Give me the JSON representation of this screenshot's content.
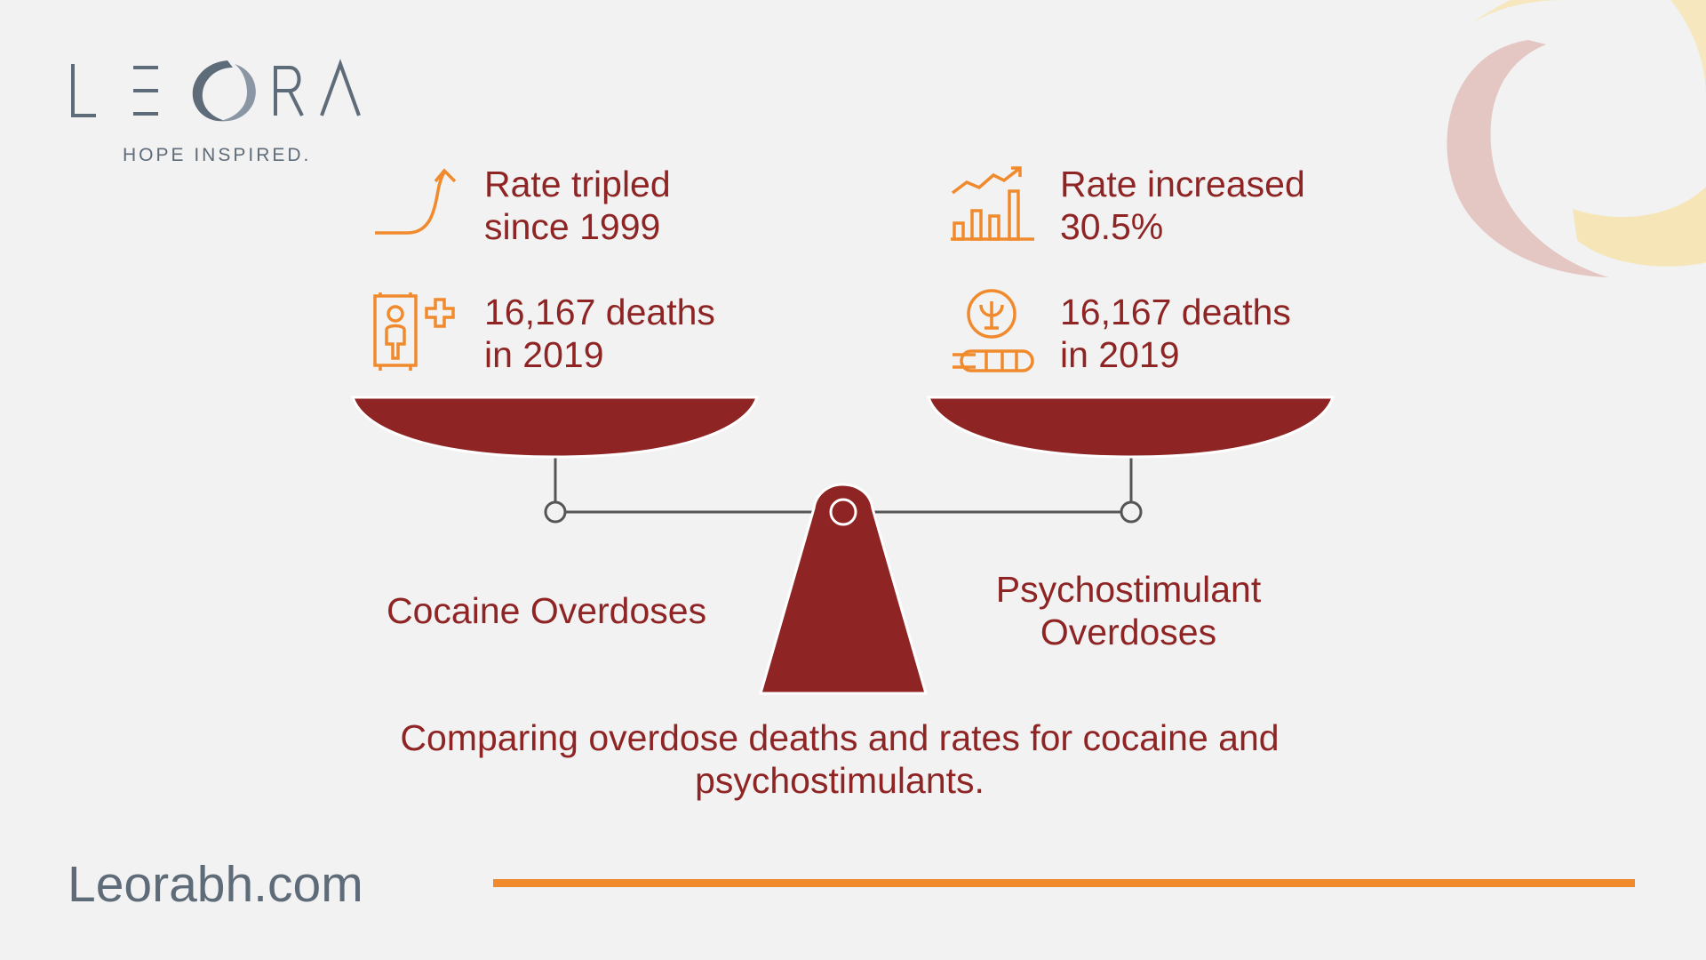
{
  "brand": {
    "logo_text": "LEORA",
    "tagline": "HOPE INSPIRED."
  },
  "left": {
    "rate_line1": "Rate tripled",
    "rate_line2": "since 1999",
    "deaths_line1": "16,167 deaths",
    "deaths_line2": "in 2019",
    "label": "Cocaine Overdoses",
    "rate_icon": "upward-curve-arrow-icon",
    "deaths_icon": "hospital-patient-icon"
  },
  "right": {
    "rate_line1": "Rate increased",
    "rate_line2": "30.5%",
    "deaths_line1": "16,167 deaths",
    "deaths_line2": "in 2019",
    "label_line1": "Psychostimulant",
    "label_line2": "Overdoses",
    "rate_icon": "bar-chart-trend-icon",
    "deaths_icon": "psi-pills-icon"
  },
  "caption_line1": "Comparing overdose deaths and rates for cocaine and",
  "caption_line2": "psychostimulants.",
  "footer": {
    "site": "Leorabh.com"
  },
  "colors": {
    "background": "#f2f2f2",
    "accent_red": "#8f2424",
    "accent_orange": "#f08a2c",
    "brand_gray": "#5e6b78"
  }
}
